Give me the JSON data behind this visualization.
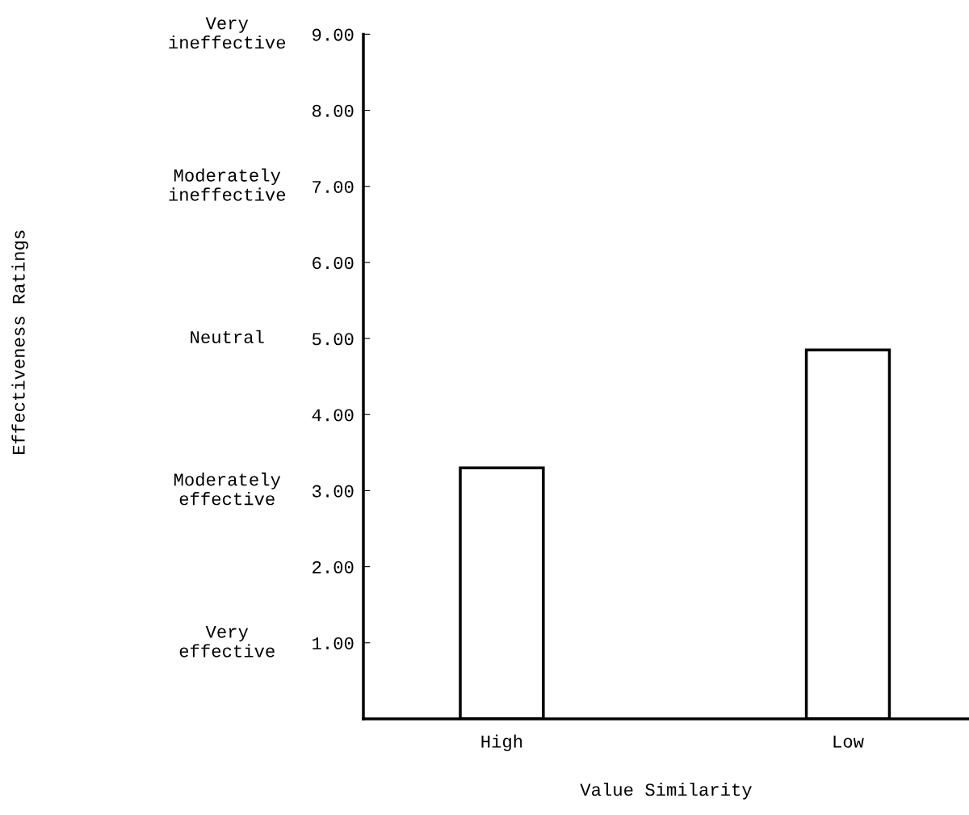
{
  "chart_data": {
    "type": "bar",
    "xlabel": "Value Similarity",
    "categories": [
      "High",
      "Low"
    ],
    "values": [
      3.3,
      4.85
    ],
    "color": "#ffffff",
    "ylim": [
      0,
      9
    ],
    "yticks": [
      {
        "value": 0,
        "label": null
      },
      {
        "value": 1,
        "label": "1.00"
      },
      {
        "value": 2,
        "label": "2.00"
      },
      {
        "value": 3,
        "label": "3.00"
      },
      {
        "value": 4,
        "label": "4.00"
      },
      {
        "value": 5,
        "label": "5.00"
      },
      {
        "value": 6,
        "label": "6.00"
      },
      {
        "value": 7,
        "label": "7.00"
      },
      {
        "value": 8,
        "label": "8.00"
      },
      {
        "value": 9,
        "label": "9.00"
      }
    ],
    "annotations": [
      "Very\nineffective",
      "Moderately\nineffective",
      "Neutral",
      "Moderately\neffective",
      "Very\neffective",
      "Effectiveness Ratings"
    ],
    "grid": false
  }
}
